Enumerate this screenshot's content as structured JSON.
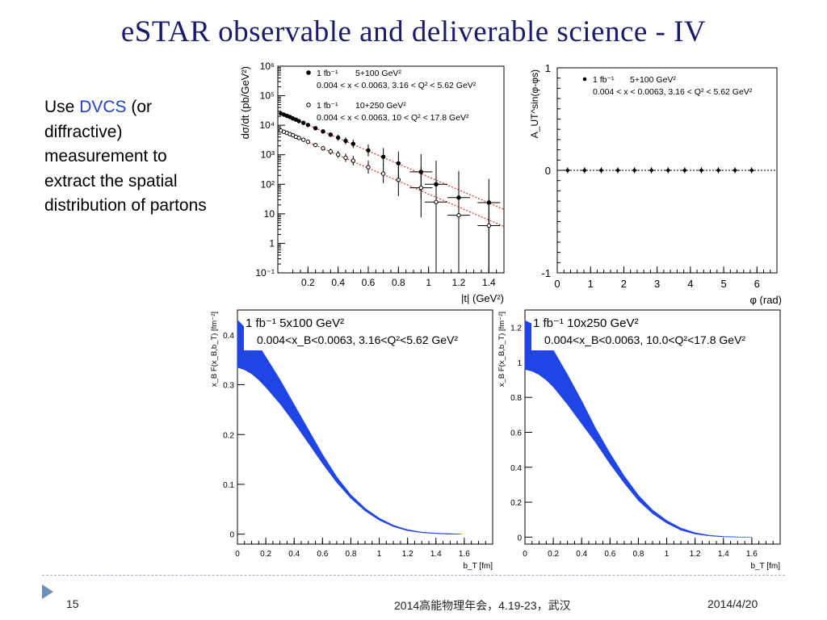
{
  "slide": {
    "title": "eSTAR observable and deliverable science - IV",
    "bullet": {
      "pre": "Use ",
      "accent": "DVCS",
      "post": " (or diffractive) measurement to extract the spatial distribution of partons"
    },
    "footer": {
      "page": "15",
      "center": "2014高能物理年会，4.19-23，武汉",
      "date": "2014/4/20"
    }
  },
  "colors": {
    "title": "#1a1a6e",
    "accent": "#1f3fd6",
    "band": "#1f45e6",
    "fit": "#e0312a",
    "footer_marker": "#6d8fb5"
  },
  "chart_data": [
    {
      "type": "scatter",
      "ylabel": "dσ/dt (pb/GeV²)",
      "xlabel": "|t| (GeV²)",
      "yscale": "log",
      "xlim": [
        0,
        1.5
      ],
      "ylim_exp": [
        -1,
        6
      ],
      "xticks": [
        "0.2",
        "0.4",
        "0.6",
        "0.8",
        "1",
        "1.2",
        "1.4"
      ],
      "yticks": [
        "10⁻¹",
        "1",
        "10",
        "10²",
        "10³",
        "10⁴",
        "10⁵",
        "10⁶"
      ],
      "legend": [
        {
          "marker": "filled",
          "lumi": "1 fb⁻¹",
          "beam": "5+100 GeV²",
          "cut": "0.004 < x < 0.0063, 3.16 < Q² < 5.62 GeV²"
        },
        {
          "marker": "open",
          "lumi": "1 fb⁻¹",
          "beam": "10+250 GeV²",
          "cut": "0.004 < x < 0.0063, 10 < Q² < 17.8 GeV²"
        }
      ],
      "series": [
        {
          "marker": "filled",
          "x": [
            0.02,
            0.04,
            0.06,
            0.08,
            0.1,
            0.12,
            0.14,
            0.17,
            0.2,
            0.25,
            0.3,
            0.35,
            0.4,
            0.45,
            0.5,
            0.6,
            0.7,
            0.8,
            0.95,
            1.05,
            1.2,
            1.4
          ],
          "log10y": [
            4.4,
            4.36,
            4.32,
            4.28,
            4.23,
            4.19,
            4.14,
            4.08,
            4.01,
            3.9,
            3.79,
            3.68,
            3.58,
            3.47,
            3.37,
            3.15,
            2.93,
            2.71,
            2.42,
            2.0,
            1.55,
            1.38
          ],
          "errlo": [
            0.05,
            0.05,
            0.05,
            0.05,
            0.05,
            0.05,
            0.05,
            0.05,
            0.05,
            0.06,
            0.07,
            0.08,
            0.1,
            0.12,
            0.14,
            0.2,
            0.3,
            0.5,
            0.9,
            3.2,
            2.6,
            2.4
          ],
          "errhi": [
            0.05,
            0.05,
            0.05,
            0.05,
            0.05,
            0.05,
            0.05,
            0.05,
            0.05,
            0.06,
            0.07,
            0.08,
            0.1,
            0.12,
            0.14,
            0.2,
            0.3,
            0.4,
            0.6,
            0.8,
            0.9,
            0.8
          ]
        },
        {
          "marker": "open",
          "x": [
            0.02,
            0.04,
            0.06,
            0.08,
            0.1,
            0.12,
            0.14,
            0.17,
            0.2,
            0.25,
            0.3,
            0.35,
            0.4,
            0.45,
            0.5,
            0.6,
            0.7,
            0.8,
            0.95,
            1.05,
            1.2,
            1.4
          ],
          "log10y": [
            3.82,
            3.78,
            3.74,
            3.7,
            3.66,
            3.61,
            3.57,
            3.51,
            3.44,
            3.33,
            3.22,
            3.11,
            3.01,
            2.9,
            2.8,
            2.58,
            2.36,
            2.15,
            1.88,
            1.4,
            0.95,
            0.6
          ],
          "errlo": [
            0.05,
            0.05,
            0.05,
            0.05,
            0.05,
            0.05,
            0.05,
            0.05,
            0.06,
            0.07,
            0.08,
            0.1,
            0.12,
            0.14,
            0.16,
            0.22,
            0.32,
            0.55,
            1.0,
            2.6,
            2.0,
            1.6
          ],
          "errhi": [
            0.05,
            0.05,
            0.05,
            0.05,
            0.05,
            0.05,
            0.05,
            0.05,
            0.06,
            0.07,
            0.08,
            0.1,
            0.12,
            0.14,
            0.16,
            0.22,
            0.32,
            0.45,
            0.7,
            0.9,
            1.0,
            0.9
          ]
        }
      ],
      "fits": [
        {
          "log10y_at_0": 4.45,
          "slope_per_unit_t": -2.2
        },
        {
          "log10y_at_0": 3.87,
          "slope_per_unit_t": -2.2
        }
      ]
    },
    {
      "type": "scatter",
      "ylabel": "A_UT^sin(φ-φs)",
      "xlabel": "φ (rad)",
      "xlim": [
        0,
        6.6
      ],
      "ylim": [
        -1,
        1
      ],
      "xticks": [
        "0",
        "1",
        "2",
        "3",
        "4",
        "5",
        "6"
      ],
      "yticks": [
        "-1",
        "0",
        "1"
      ],
      "legend": [
        {
          "marker": "filled",
          "lumi": "1 fb⁻¹",
          "beam": "5+100 GeV²",
          "cut": "0.004 < x < 0.0063, 3.16 < Q² < 5.62 GeV²"
        }
      ],
      "series": [
        {
          "x": [
            0.31,
            0.82,
            1.32,
            1.82,
            2.32,
            2.83,
            3.33,
            3.83,
            4.33,
            4.84,
            5.34,
            5.84
          ],
          "y": [
            0,
            0,
            0,
            0,
            0,
            0,
            0,
            0,
            0,
            0,
            0,
            0
          ],
          "err": 0.03
        }
      ]
    },
    {
      "type": "area",
      "ylabel": "x_B F(x_B,b_T) [fm⁻²]",
      "xlabel": "b_T [fm]",
      "xlim": [
        0,
        1.8
      ],
      "ylim": [
        -0.02,
        0.45
      ],
      "xticks": [
        "0",
        "0.2",
        "0.4",
        "0.6",
        "0.8",
        "1",
        "1.2",
        "1.4",
        "1.6"
      ],
      "yticks": [
        "0",
        "0.1",
        "0.2",
        "0.3",
        "0.4"
      ],
      "legend": {
        "line1": "1 fb⁻¹   5x100 GeV²",
        "line2": "0.004<x_B<0.0063, 3.16<Q²<5.62 GeV²"
      },
      "band": {
        "x": [
          0,
          0.05,
          0.1,
          0.15,
          0.2,
          0.3,
          0.4,
          0.5,
          0.6,
          0.7,
          0.8,
          0.9,
          1.0,
          1.1,
          1.2,
          1.3,
          1.4,
          1.5,
          1.58
        ],
        "lower": [
          0.335,
          0.33,
          0.322,
          0.31,
          0.295,
          0.262,
          0.224,
          0.183,
          0.142,
          0.104,
          0.072,
          0.047,
          0.028,
          0.015,
          0.007,
          0.003,
          0.001,
          0.0,
          0.0
        ],
        "upper": [
          0.43,
          0.415,
          0.398,
          0.378,
          0.356,
          0.31,
          0.26,
          0.21,
          0.16,
          0.115,
          0.079,
          0.052,
          0.032,
          0.018,
          0.009,
          0.004,
          0.002,
          0.001,
          0.0
        ]
      }
    },
    {
      "type": "area",
      "ylabel": "x_B F(x_B,b_T) [fm⁻²]",
      "xlabel": "b_T [fm]",
      "xlim": [
        0,
        1.8
      ],
      "ylim": [
        -0.04,
        1.3
      ],
      "xticks": [
        "0",
        "0.2",
        "0.4",
        "0.6",
        "0.8",
        "1",
        "1.2",
        "1.4",
        "1.6"
      ],
      "yticks": [
        "0",
        "0.2",
        "0.4",
        "0.6",
        "0.8",
        "1",
        "1.2"
      ],
      "legend": {
        "line1": "1 fb⁻¹  10x250 GeV²",
        "line2": "0.004<x_B<0.0063, 10.0<Q²<17.8 GeV²"
      },
      "band": {
        "x": [
          0,
          0.05,
          0.1,
          0.15,
          0.2,
          0.3,
          0.4,
          0.5,
          0.6,
          0.7,
          0.8,
          0.9,
          1.0,
          1.1,
          1.2,
          1.3,
          1.4,
          1.5,
          1.6
        ],
        "lower": [
          0.96,
          0.95,
          0.93,
          0.9,
          0.86,
          0.76,
          0.65,
          0.54,
          0.42,
          0.31,
          0.21,
          0.135,
          0.08,
          0.04,
          0.018,
          0.007,
          0.002,
          0.0,
          0.0
        ],
        "upper": [
          1.24,
          1.22,
          1.18,
          1.13,
          1.07,
          0.93,
          0.78,
          0.62,
          0.48,
          0.35,
          0.24,
          0.155,
          0.095,
          0.052,
          0.025,
          0.011,
          0.004,
          0.001,
          0.0
        ]
      }
    }
  ]
}
